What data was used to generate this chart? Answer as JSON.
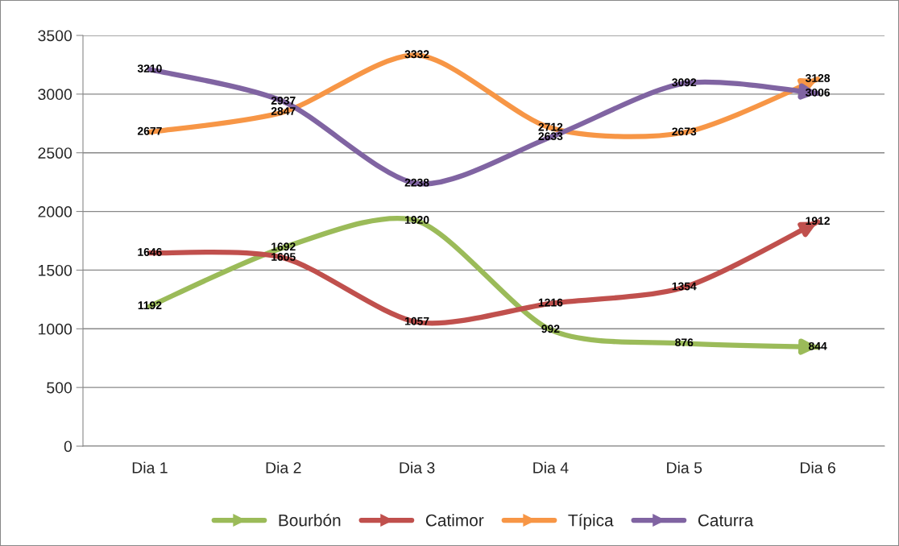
{
  "chart_data": {
    "type": "line",
    "categories": [
      "Dia 1",
      "Dia 2",
      "Dia 3",
      "Dia 4",
      "Dia 5",
      "Dia 6"
    ],
    "series": [
      {
        "name": "Bourbón",
        "color": "#9bbb59",
        "values": [
          1192,
          1692,
          1920,
          992,
          876,
          844
        ]
      },
      {
        "name": "Catimor",
        "color": "#c0504d",
        "values": [
          1646,
          1605,
          1057,
          1216,
          1354,
          1912
        ]
      },
      {
        "name": "Típica",
        "color": "#f79646",
        "values": [
          2677,
          2847,
          3332,
          2712,
          2673,
          3128
        ]
      },
      {
        "name": "Caturra",
        "color": "#8064a2",
        "values": [
          3210,
          2937,
          2238,
          2633,
          3092,
          3006
        ]
      }
    ],
    "ylim": [
      0,
      3500
    ],
    "yticks": [
      0,
      500,
      1000,
      1500,
      2000,
      2500,
      3000,
      3500
    ],
    "grid": "y",
    "legend": "bottom",
    "data_labels": true,
    "marker": "none",
    "line_style": "solid"
  }
}
